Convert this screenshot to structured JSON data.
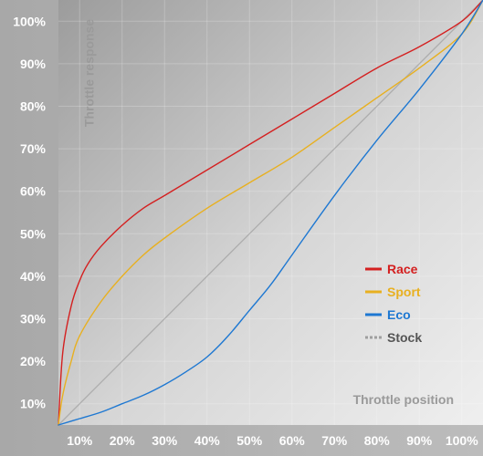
{
  "chart_data": {
    "type": "line",
    "title": "",
    "xlabel": "Throttle position",
    "ylabel": "Throttle response",
    "xlim": [
      5,
      105
    ],
    "ylim": [
      5,
      105
    ],
    "x_ticks": [
      "10%",
      "20%",
      "30%",
      "40%",
      "50%",
      "60%",
      "70%",
      "80%",
      "90%",
      "100%"
    ],
    "y_ticks": [
      "10%",
      "20%",
      "30%",
      "40%",
      "50%",
      "60%",
      "70%",
      "80%",
      "90%",
      "100%"
    ],
    "grid": true,
    "legend_position": "center-right",
    "series": [
      {
        "name": "Race",
        "color": "#d42020",
        "style": "solid",
        "x": [
          5,
          6,
          8,
          10,
          12,
          15,
          20,
          25,
          30,
          40,
          50,
          60,
          70,
          80,
          90,
          100,
          105
        ],
        "y": [
          5,
          22,
          33,
          39,
          43,
          47,
          52,
          56,
          59,
          65,
          71,
          77,
          83,
          89,
          94,
          100,
          105
        ]
      },
      {
        "name": "Sport",
        "color": "#e8b020",
        "style": "solid",
        "x": [
          5,
          6,
          8,
          10,
          15,
          20,
          25,
          30,
          40,
          50,
          60,
          70,
          80,
          90,
          100,
          105
        ],
        "y": [
          5,
          12,
          20,
          26,
          34,
          40,
          45,
          49,
          56,
          62,
          68,
          75,
          82,
          89,
          97,
          105
        ]
      },
      {
        "name": "Eco",
        "color": "#1e78d2",
        "style": "solid",
        "x": [
          5,
          10,
          15,
          20,
          25,
          30,
          35,
          40,
          45,
          50,
          55,
          60,
          70,
          80,
          90,
          100,
          105
        ],
        "y": [
          5,
          6.5,
          8,
          10,
          12,
          14.5,
          17.5,
          21,
          26,
          32,
          38,
          45,
          59,
          72,
          84,
          97,
          105
        ]
      },
      {
        "name": "Stock",
        "color": "#9e9e9e",
        "style": "dashed",
        "x": [
          5,
          105
        ],
        "y": [
          5,
          105
        ]
      }
    ]
  }
}
